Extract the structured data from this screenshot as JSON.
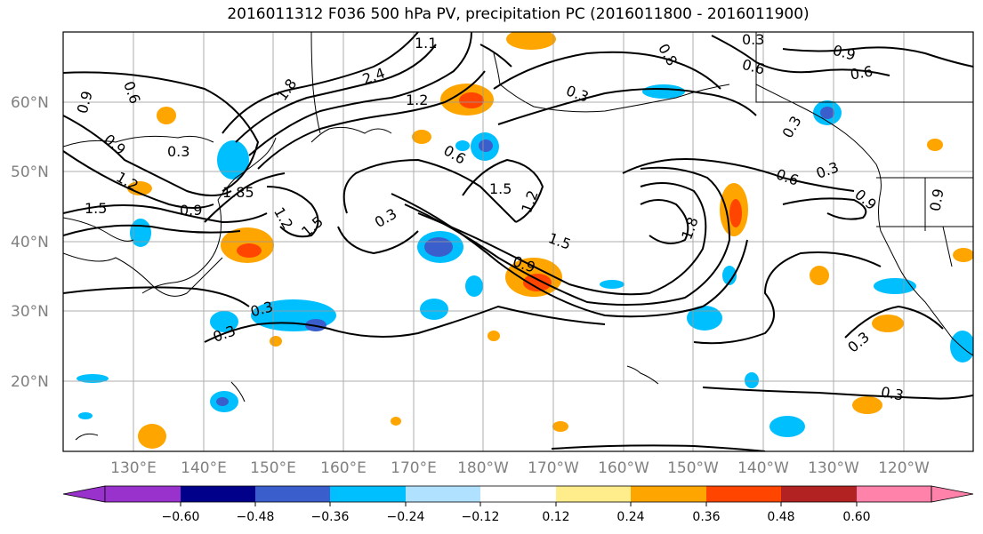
{
  "title": "2016011312 F036 500 hPa PV, precipitation PC (2016011800 - 2016011900)",
  "map": {
    "lat_labels": [
      "60°N",
      "50°N",
      "40°N",
      "30°N",
      "20°N"
    ],
    "lon_labels": [
      "130°E",
      "140°E",
      "150°E",
      "160°E",
      "170°E",
      "180°W",
      "170°W",
      "160°W",
      "150°W",
      "140°W",
      "130°W",
      "120°W"
    ],
    "contour_labels": [
      "0.9",
      "0.6",
      "0.9",
      "0.3",
      "1.2",
      "1.5",
      "0.9",
      "1.85",
      "1.2",
      "1.5",
      "1.1",
      "1.8",
      "2.4",
      "1.2",
      "0.3",
      "0.6",
      "1.5",
      "1.2",
      "0.3",
      "1.5",
      "0.9",
      "1.8",
      "0.3",
      "0.3",
      "0.3",
      "0.3",
      "0.8",
      "0.6",
      "0.9",
      "0.6",
      "0.6",
      "0.3",
      "0.9",
      "0.3",
      "0.3",
      "0.9"
    ]
  },
  "colorbar": {
    "ticks": [
      "−0.60",
      "−0.48",
      "−0.36",
      "−0.24",
      "−0.12",
      "0.12",
      "0.24",
      "0.36",
      "0.48",
      "0.60"
    ],
    "colors": [
      "#9932CC",
      "#00008B",
      "#3A5FCD",
      "#00BFFF",
      "#B0E2FF",
      "#FFFFFF",
      "#FFEC8B",
      "#FFA500",
      "#FF4500",
      "#B22222",
      "#FF82AB"
    ]
  }
}
